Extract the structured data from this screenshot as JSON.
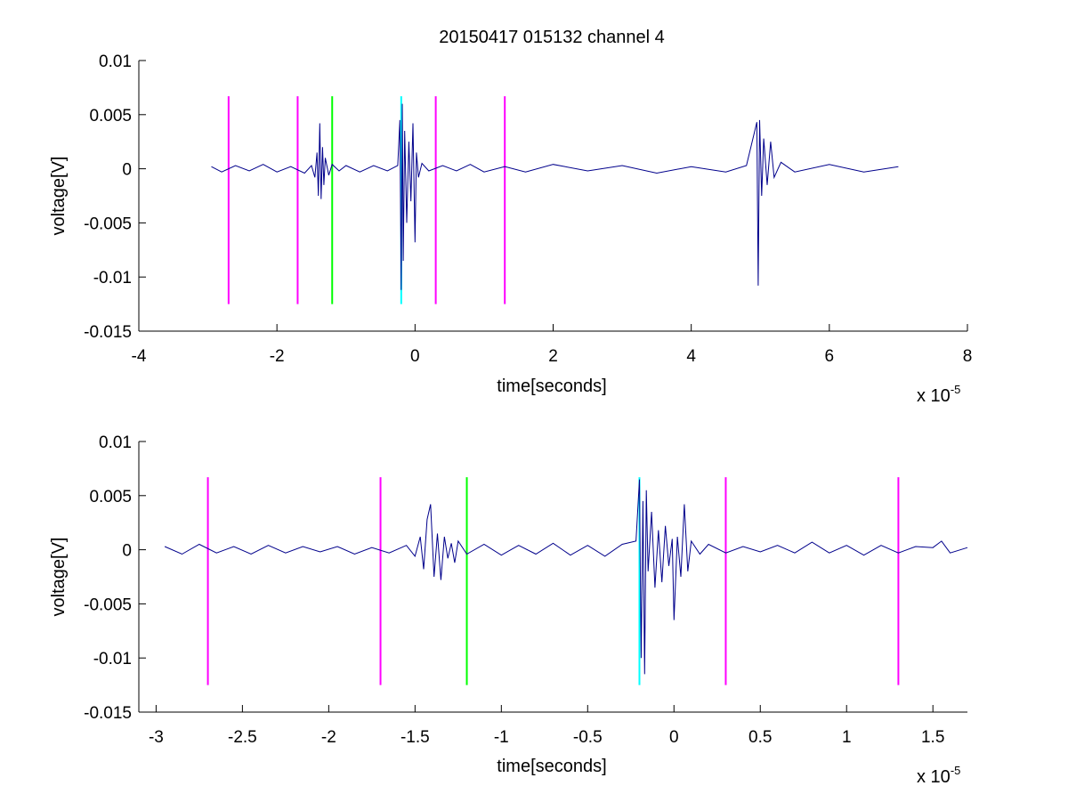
{
  "chart_data": [
    {
      "type": "line",
      "title": "20150417 015132 channel 4",
      "xlabel": "time[seconds]",
      "ylabel": "voltage[V]",
      "x_multiplier_label": "x 10",
      "x_multiplier_exponent": "-5",
      "xlim": [
        -4e-05,
        8e-05
      ],
      "ylim": [
        -0.015,
        0.01
      ],
      "x_ticks": [
        -4e-05,
        -2e-05,
        0,
        2e-05,
        4e-05,
        6e-05,
        8e-05
      ],
      "x_tick_labels": [
        "-4",
        "-2",
        "0",
        "2",
        "4",
        "6",
        "8"
      ],
      "y_ticks": [
        0.01,
        0.005,
        0,
        -0.005,
        -0.01,
        -0.015
      ],
      "y_tick_labels": [
        "0.01",
        "0.005",
        "0",
        "-0.005",
        "-0.01",
        "-0.015"
      ],
      "grid": false,
      "series": [
        {
          "color": "#00008b",
          "x": [
            -2.95e-05,
            -2.8e-05,
            -2.6e-05,
            -2.4e-05,
            -2.2e-05,
            -2e-05,
            -1.8e-05,
            -1.6e-05,
            -1.5e-05,
            -1.45e-05,
            -1.42e-05,
            -1.4e-05,
            -1.38e-05,
            -1.36e-05,
            -1.34e-05,
            -1.32e-05,
            -1.3e-05,
            -1.25e-05,
            -1.2e-05,
            -1.1e-05,
            -1e-05,
            -8e-06,
            -6e-06,
            -4e-06,
            -2.5e-06,
            -2.2e-06,
            -2e-06,
            -1.85e-06,
            -1.7e-06,
            -1.5e-06,
            -1.2e-06,
            -9e-07,
            -6e-07,
            -3e-07,
            0,
            2e-07,
            5e-07,
            1e-06,
            2e-06,
            4e-06,
            6e-06,
            8e-06,
            1e-05,
            1.3e-05,
            1.6e-05,
            2e-05,
            2.5e-05,
            3e-05,
            3.5e-05,
            4e-05,
            4.5e-05,
            4.8e-05,
            4.95e-05,
            4.97e-05,
            4.99e-05,
            5.02e-05,
            5.05e-05,
            5.1e-05,
            5.15e-05,
            5.2e-05,
            5.3e-05,
            5.5e-05,
            6e-05,
            6.5e-05,
            7e-05
          ],
          "y": [
            0.0002,
            -0.0003,
            0.0003,
            -0.0002,
            0.0004,
            -0.0003,
            0.0002,
            -0.0004,
            0.0003,
            -0.0008,
            0.0015,
            -0.0025,
            0.0042,
            -0.0028,
            0.002,
            -0.0015,
            0.001,
            -0.0006,
            0.0004,
            -0.0002,
            0.0003,
            -0.0003,
            0.0003,
            -0.0002,
            0.0003,
            0.0045,
            -0.0112,
            0.006,
            -0.0085,
            0.0035,
            -0.005,
            0.0025,
            -0.003,
            0.0042,
            -0.0068,
            0.0015,
            -0.0008,
            0.0005,
            -0.0002,
            0.0003,
            -0.0002,
            0.0004,
            -0.0003,
            0.0002,
            -0.0003,
            0.0004,
            -0.0002,
            0.0003,
            -0.0004,
            0.0002,
            -0.0003,
            0.0003,
            0.0043,
            -0.0108,
            0.0045,
            -0.0025,
            0.0028,
            -0.0015,
            0.0025,
            -0.0008,
            0.0006,
            -0.0003,
            0.0004,
            -0.0003,
            0.0002
          ]
        }
      ],
      "vertical_markers": [
        {
          "x": -2.7e-05,
          "color": "#ff00ff"
        },
        {
          "x": -1.7e-05,
          "color": "#ff00ff"
        },
        {
          "x": -1.2e-05,
          "color": "#00ff00"
        },
        {
          "x": -2e-06,
          "color": "#00ffff"
        },
        {
          "x": 3e-06,
          "color": "#ff00ff"
        },
        {
          "x": 1.3e-05,
          "color": "#ff00ff"
        }
      ],
      "marker_ylim": [
        -0.0125,
        0.0067
      ]
    },
    {
      "type": "line",
      "title": "",
      "xlabel": "time[seconds]",
      "ylabel": "voltage[V]",
      "x_multiplier_label": "x 10",
      "x_multiplier_exponent": "-5",
      "xlim": [
        -3.1e-05,
        1.7e-05
      ],
      "ylim": [
        -0.015,
        0.01
      ],
      "x_ticks": [
        -3e-05,
        -2.5e-05,
        -2e-05,
        -1.5e-05,
        -1e-05,
        -5e-06,
        0,
        5e-06,
        1e-05,
        1.5e-05
      ],
      "x_tick_labels": [
        "-3",
        "-2.5",
        "-2",
        "-1.5",
        "-1",
        "-0.5",
        "0",
        "0.5",
        "1",
        "1.5"
      ],
      "y_ticks": [
        0.01,
        0.005,
        0,
        -0.005,
        -0.01,
        -0.015
      ],
      "y_tick_labels": [
        "0.01",
        "0.005",
        "0",
        "-0.005",
        "-0.01",
        "-0.015"
      ],
      "grid": false,
      "series": [
        {
          "color": "#00008b",
          "x": [
            -2.95e-05,
            -2.85e-05,
            -2.75e-05,
            -2.65e-05,
            -2.55e-05,
            -2.45e-05,
            -2.35e-05,
            -2.25e-05,
            -2.15e-05,
            -2.05e-05,
            -1.95e-05,
            -1.85e-05,
            -1.75e-05,
            -1.65e-05,
            -1.55e-05,
            -1.5e-05,
            -1.47e-05,
            -1.45e-05,
            -1.43e-05,
            -1.41e-05,
            -1.39e-05,
            -1.37e-05,
            -1.35e-05,
            -1.33e-05,
            -1.31e-05,
            -1.29e-05,
            -1.27e-05,
            -1.25e-05,
            -1.2e-05,
            -1.1e-05,
            -1e-05,
            -9e-06,
            -8e-06,
            -7e-06,
            -6e-06,
            -5e-06,
            -4e-06,
            -3e-06,
            -2.2e-06,
            -2e-06,
            -1.9e-06,
            -1.8e-06,
            -1.7e-06,
            -1.6e-06,
            -1.5e-06,
            -1.3e-06,
            -1.1e-06,
            -9e-07,
            -7e-07,
            -5e-07,
            -3e-07,
            -1e-07,
            0,
            2e-07,
            4e-07,
            6e-07,
            8e-07,
            1e-06,
            1.5e-06,
            2e-06,
            3e-06,
            4e-06,
            5e-06,
            6e-06,
            7e-06,
            8e-06,
            9e-06,
            1e-05,
            1.1e-05,
            1.2e-05,
            1.3e-05,
            1.4e-05,
            1.5e-05,
            1.55e-05,
            1.6e-05,
            1.7e-05
          ],
          "y": [
            0.0003,
            -0.0004,
            0.0005,
            -0.0003,
            0.0003,
            -0.0004,
            0.0004,
            -0.0003,
            0.0003,
            -0.0002,
            0.0003,
            -0.0004,
            0.0002,
            -0.0003,
            0.0004,
            -0.0006,
            0.0012,
            -0.0018,
            0.0028,
            0.0042,
            -0.0025,
            0.0015,
            -0.0028,
            0.0012,
            -0.0008,
            0.0006,
            -0.0012,
            0.0008,
            -0.0004,
            0.0005,
            -0.0005,
            0.0004,
            -0.0004,
            0.0006,
            -0.0005,
            0.0004,
            -0.0006,
            0.0005,
            0.0008,
            0.0065,
            -0.01,
            0.0045,
            -0.0115,
            0.0055,
            -0.002,
            0.0035,
            -0.0035,
            0.0018,
            -0.003,
            0.0022,
            -0.0015,
            0.001,
            -0.0065,
            0.0012,
            -0.0025,
            0.0042,
            -0.002,
            0.0008,
            -0.0004,
            0.0005,
            -0.0003,
            0.0003,
            -0.0002,
            0.0004,
            -0.0003,
            0.0007,
            -0.0003,
            0.0004,
            -0.0005,
            0.0004,
            -0.0003,
            0.0003,
            0.0002,
            0.0008,
            -0.0003,
            0.0002
          ]
        }
      ],
      "vertical_markers": [
        {
          "x": -2.7e-05,
          "color": "#ff00ff"
        },
        {
          "x": -1.7e-05,
          "color": "#ff00ff"
        },
        {
          "x": -1.2e-05,
          "color": "#00ff00"
        },
        {
          "x": -2e-06,
          "color": "#00ffff"
        },
        {
          "x": 3e-06,
          "color": "#ff00ff"
        },
        {
          "x": 1.3e-05,
          "color": "#ff00ff"
        }
      ],
      "marker_ylim": [
        -0.0125,
        0.0067
      ]
    }
  ]
}
